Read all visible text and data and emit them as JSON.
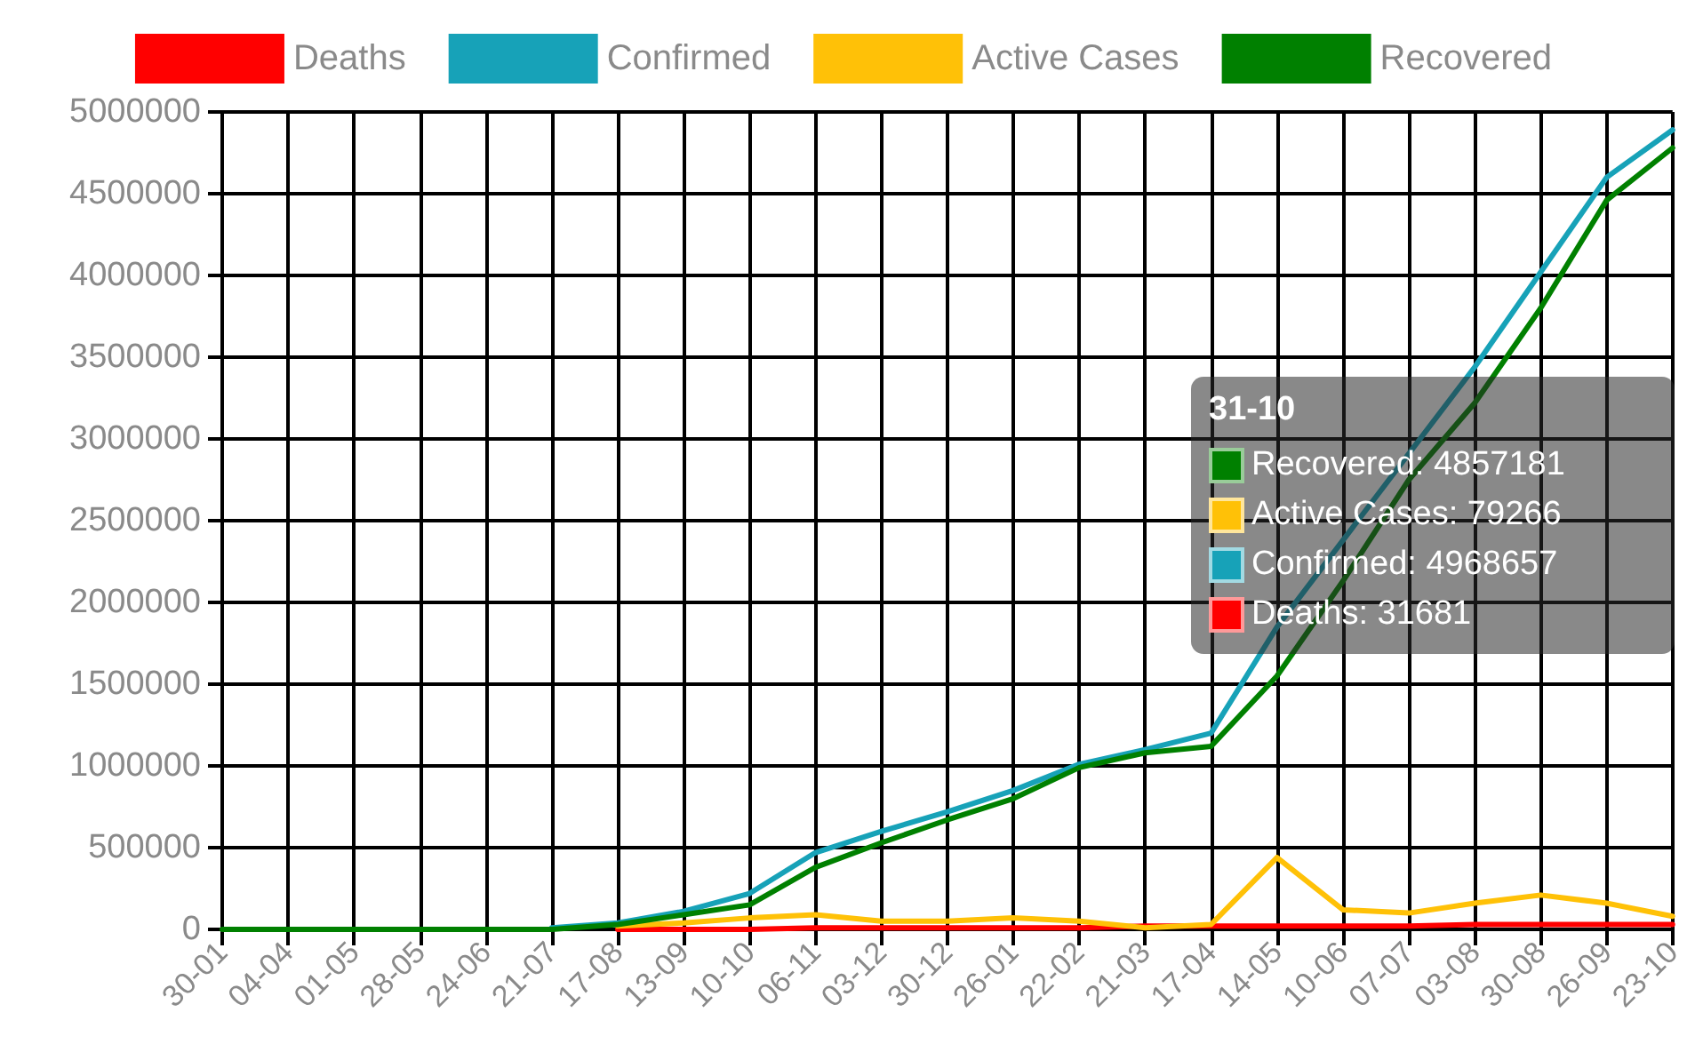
{
  "chart_data": {
    "type": "line",
    "categories": [
      "30-01",
      "04-04",
      "01-05",
      "28-05",
      "24-06",
      "21-07",
      "17-08",
      "13-09",
      "10-10",
      "06-11",
      "03-12",
      "30-12",
      "26-01",
      "22-02",
      "21-03",
      "17-04",
      "14-05",
      "10-06",
      "07-07",
      "03-08",
      "30-08",
      "26-09",
      "23-10"
    ],
    "series": [
      {
        "name": "Deaths",
        "color": "#ff0000",
        "values": [
          null,
          null,
          null,
          null,
          null,
          null,
          0,
          0,
          0,
          10000,
          10000,
          10000,
          10000,
          10000,
          20000,
          20000,
          20000,
          20000,
          20000,
          30000,
          30000,
          30000,
          30000
        ]
      },
      {
        "name": "Confirmed",
        "color": "#17a2b8",
        "values": [
          null,
          null,
          null,
          null,
          null,
          10000,
          40000,
          110000,
          220000,
          470000,
          600000,
          720000,
          850000,
          1010000,
          1100000,
          1200000,
          1850000,
          null,
          null,
          3440000,
          4020000,
          4600000,
          4890000
        ]
      },
      {
        "name": "Active Cases",
        "color": "#ffc107",
        "values": [
          null,
          null,
          null,
          null,
          null,
          null,
          20000,
          40000,
          70000,
          90000,
          50000,
          50000,
          70000,
          50000,
          10000,
          30000,
          440000,
          120000,
          100000,
          160000,
          210000,
          160000,
          80000
        ]
      },
      {
        "name": "Recovered",
        "color": "#008000",
        "values": [
          0,
          0,
          0,
          0,
          0,
          0,
          30000,
          90000,
          150000,
          380000,
          530000,
          670000,
          800000,
          990000,
          1080000,
          1120000,
          1550000,
          2130000,
          2750000,
          3220000,
          3800000,
          4460000,
          4780000
        ]
      }
    ],
    "ylim": [
      0,
      5000000
    ],
    "yticks": [
      0,
      500000,
      1000000,
      1500000,
      2000000,
      2500000,
      3000000,
      3500000,
      4000000,
      4500000,
      5000000
    ],
    "grid": true,
    "legend": "top",
    "marker": "none",
    "line_style": "solid",
    "annotations": [
      "31-10",
      "Recovered: 4857181",
      "Active Cases: 79266",
      "Confirmed: 4968657",
      "Deaths: 31681"
    ]
  }
}
